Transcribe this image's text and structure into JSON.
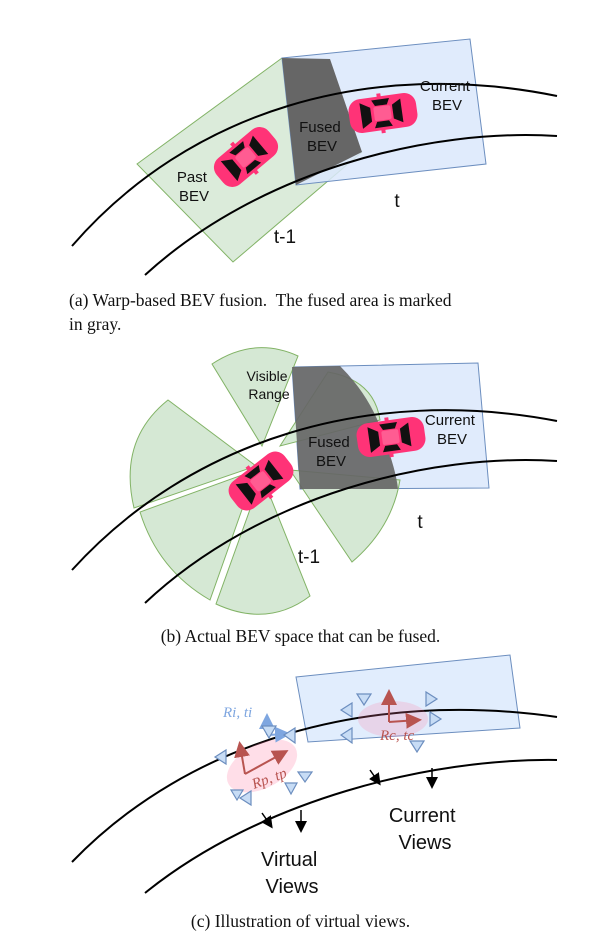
{
  "panel_a": {
    "label_past_bev": [
      "Past",
      "BEV"
    ],
    "label_fused_bev": [
      "Fused",
      "BEV"
    ],
    "label_current_bev": [
      "Current",
      "BEV"
    ],
    "label_t": "t",
    "label_t_minus_1": "t-1",
    "caption": [
      "(a) Warp-based BEV fusion.  The fused area is marked",
      "in gray."
    ]
  },
  "panel_b": {
    "label_visible_range": [
      "Visible",
      "Range"
    ],
    "label_fused_bev": [
      "Fused",
      "BEV"
    ],
    "label_current_bev": [
      "Current",
      "BEV"
    ],
    "label_t": "t",
    "label_t_minus_1": "t-1",
    "caption": "(b) Actual BEV space that can be fused."
  },
  "panel_c": {
    "label_ri_ti": "Ri, ti",
    "label_rp_tp": "Rp, tp",
    "label_rc_tc": "Rc, tc",
    "label_current_views": [
      "Current",
      "Views"
    ],
    "label_virtual_views": [
      "Virtual",
      "Views"
    ],
    "caption": "(c) Illustration of virtual views."
  },
  "colors": {
    "road_line": "#000000",
    "past_bev_fill": "#d5e8d4",
    "past_bev_stroke": "#82b366",
    "current_bev_fill": "#dae8fc",
    "current_bev_stroke": "#6c8ebf",
    "fused_fill": "#666666",
    "car_body": "#ff3377",
    "car_glass": "#111111",
    "camera_fill": "#c7dcf5",
    "camera_stroke": "#6c8ebf",
    "pose_red": "#b85450",
    "pose_blue": "#7ea6e0"
  }
}
